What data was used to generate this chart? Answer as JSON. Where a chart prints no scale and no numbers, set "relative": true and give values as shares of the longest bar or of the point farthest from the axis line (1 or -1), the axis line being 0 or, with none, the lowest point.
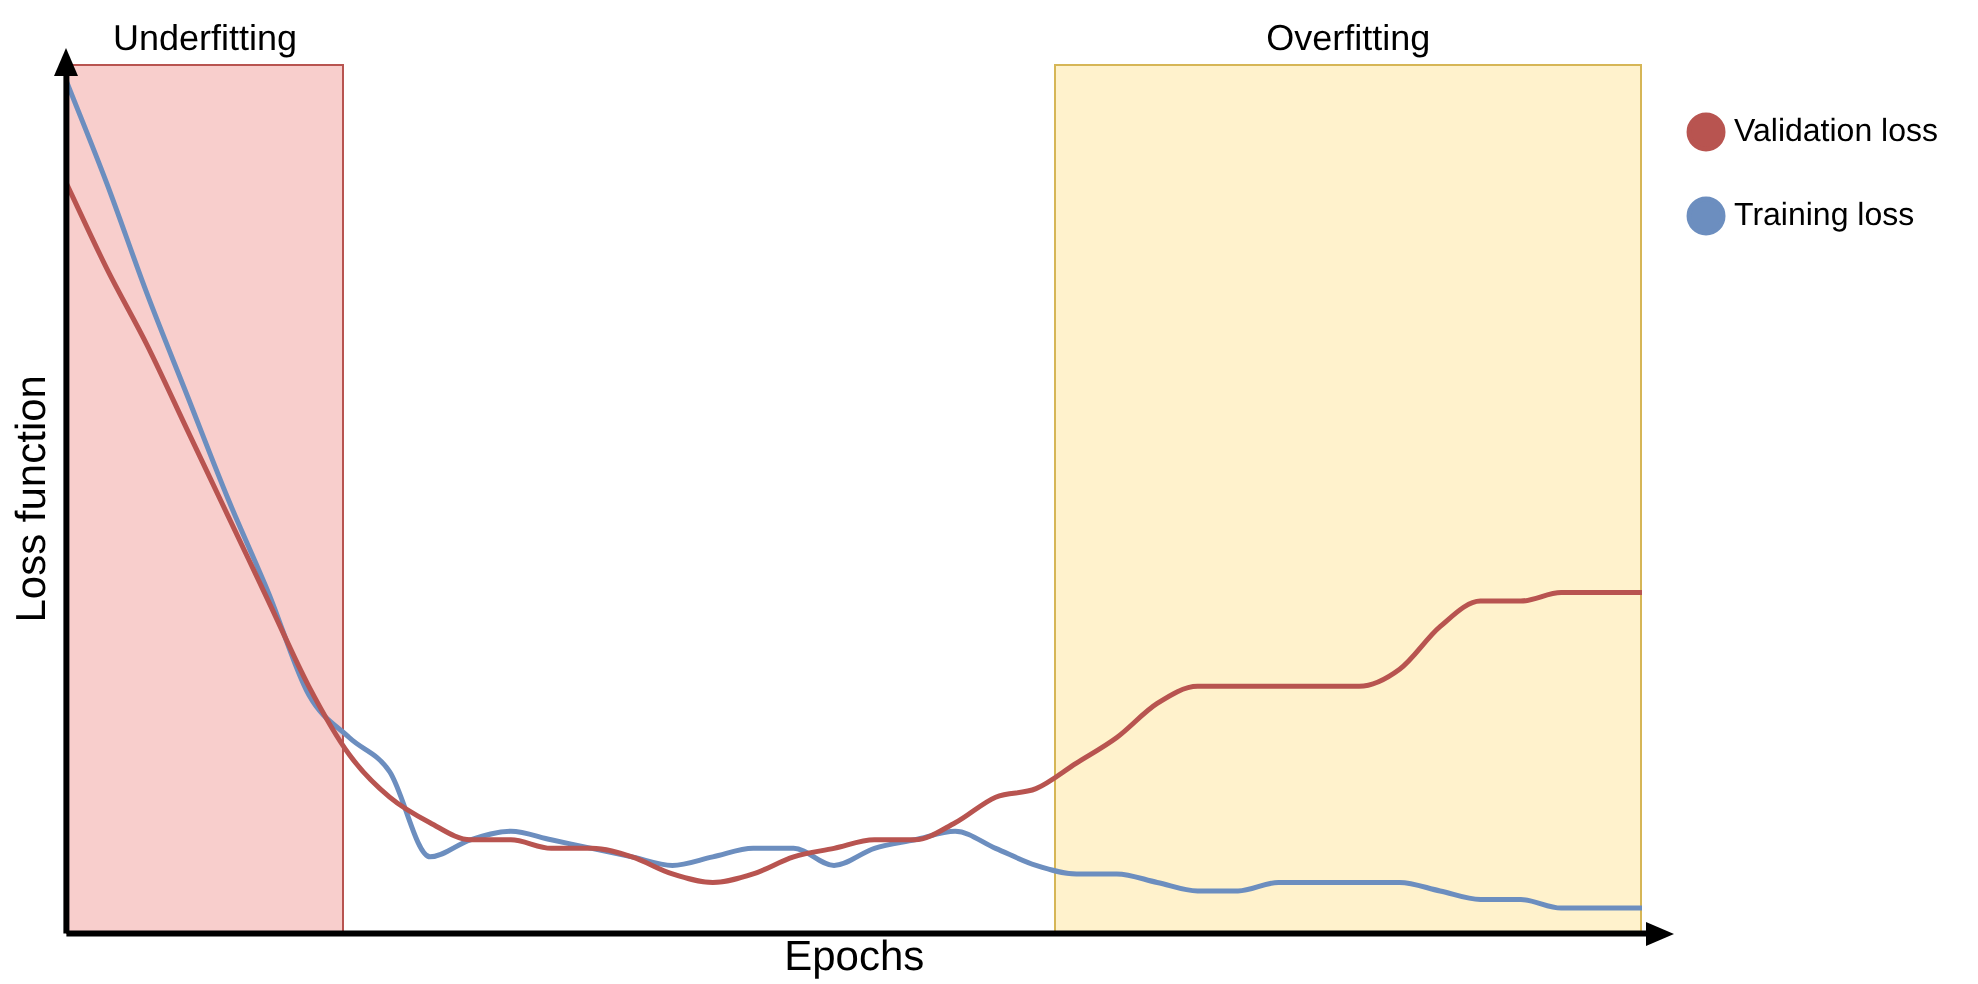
{
  "chart_data": {
    "type": "line",
    "relative": true,
    "xlabel": "Epochs",
    "ylabel": "Loss function",
    "categories": [
      null,
      null,
      null,
      null,
      null,
      null,
      null,
      null,
      null,
      null,
      null,
      null,
      null,
      null,
      null,
      null,
      null,
      null,
      null,
      null,
      null,
      null,
      null,
      null,
      null,
      null,
      null,
      null,
      null,
      null,
      null,
      null,
      null,
      null,
      null,
      null,
      null,
      null,
      null,
      null
    ],
    "series": [
      {
        "name": "Validation loss",
        "color": "#b85450",
        "values": [
          0.88,
          0.78,
          0.69,
          0.59,
          0.49,
          0.39,
          0.29,
          0.21,
          0.16,
          0.13,
          0.11,
          0.11,
          0.1,
          0.1,
          0.09,
          0.07,
          0.06,
          0.07,
          0.09,
          0.1,
          0.11,
          0.11,
          0.13,
          0.16,
          0.17,
          0.2,
          0.23,
          0.27,
          0.29,
          0.29,
          0.29,
          0.29,
          0.29,
          0.31,
          0.36,
          0.39,
          0.39,
          0.4,
          0.4,
          0.4
        ]
      },
      {
        "name": "Training loss",
        "color": "#6c8ebf",
        "values": [
          1,
          0.88,
          0.75,
          0.63,
          0.51,
          0.4,
          0.28,
          0.23,
          0.19,
          0.09,
          0.11,
          0.12,
          0.11,
          0.1,
          0.09,
          0.08,
          0.09,
          0.1,
          0.1,
          0.08,
          0.1,
          0.11,
          0.12,
          0.1,
          0.08,
          0.07,
          0.07,
          0.06,
          0.05,
          0.05,
          0.06,
          0.06,
          0.06,
          0.06,
          0.05,
          0.04,
          0.04,
          0.03,
          0.03,
          0.03
        ]
      }
    ],
    "annotations": [
      "Underfitting",
      "Overfitting"
    ],
    "legend": "right",
    "marker": "none",
    "line_style": "solid",
    "grid": false
  }
}
